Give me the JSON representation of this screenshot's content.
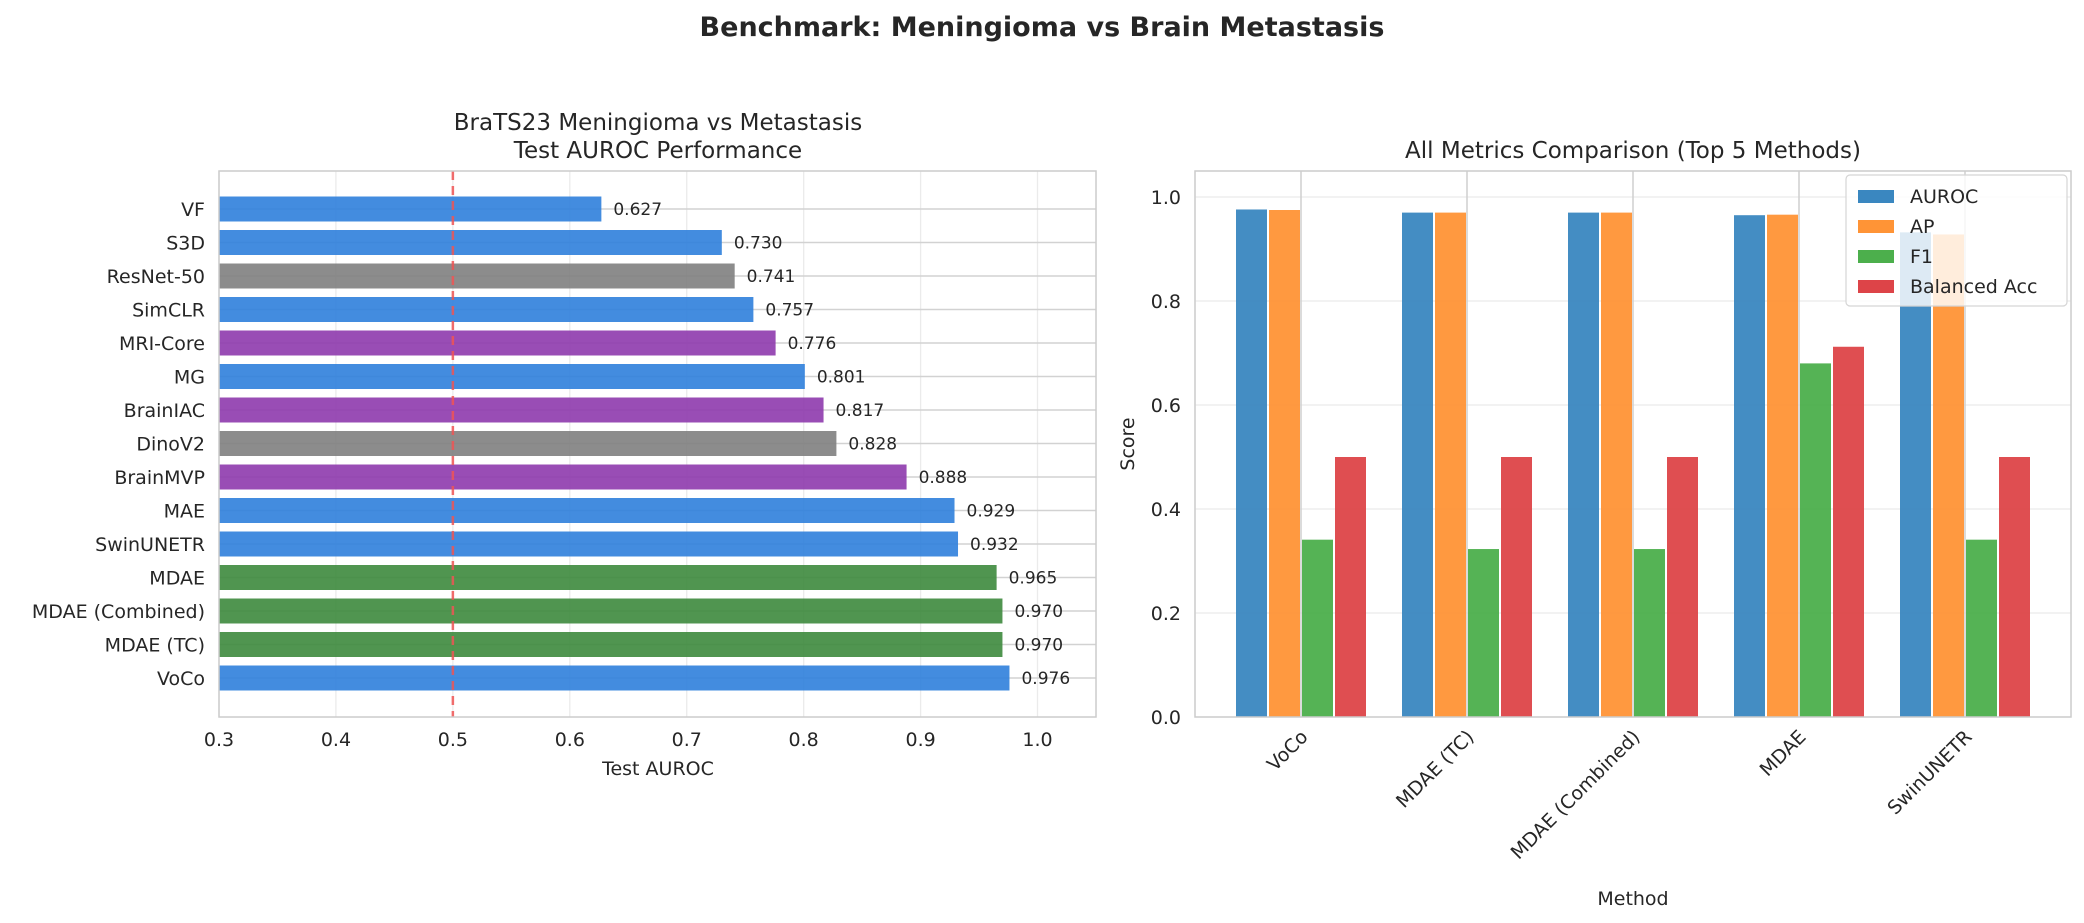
{
  "suptitle": "Benchmark: Meningioma vs Brain Metastasis",
  "chart_data": [
    {
      "type": "bar",
      "orientation": "horizontal",
      "title_line1": "BraTS23 Meningioma vs Metastasis",
      "title_line2": "Test AUROC Performance",
      "xlabel": "Test AUROC",
      "ylabel": "",
      "xlim": [
        0.3,
        1.05
      ],
      "xticks": [
        "0.3",
        "0.4",
        "0.5",
        "0.6",
        "0.7",
        "0.8",
        "0.9",
        "1.0"
      ],
      "xtick_values": [
        0.3,
        0.4,
        0.5,
        0.6,
        0.7,
        0.8,
        0.9,
        1.0
      ],
      "reference_line": 0.5,
      "reference_color": "#ee5555",
      "grid": true,
      "categories": [
        "VF",
        "S3D",
        "ResNet-50",
        "SimCLR",
        "MRI-Core",
        "MG",
        "BrainIAC",
        "DinoV2",
        "BrainMVP",
        "MAE",
        "SwinUNETR",
        "MDAE",
        "MDAE (Combined)",
        "MDAE (TC)",
        "VoCo"
      ],
      "values": [
        0.627,
        0.73,
        0.741,
        0.757,
        0.776,
        0.801,
        0.817,
        0.828,
        0.888,
        0.929,
        0.932,
        0.965,
        0.97,
        0.97,
        0.976
      ],
      "value_labels": [
        "0.627",
        "0.730",
        "0.741",
        "0.757",
        "0.776",
        "0.801",
        "0.817",
        "0.828",
        "0.888",
        "0.929",
        "0.932",
        "0.965",
        "0.970",
        "0.970",
        "0.976"
      ],
      "colors": [
        "#2f80dc",
        "#2f80dc",
        "#808080",
        "#2f80dc",
        "#8e3aad",
        "#2f80dc",
        "#8e3aad",
        "#808080",
        "#8e3aad",
        "#2f80dc",
        "#2f80dc",
        "#3d8a3d",
        "#3d8a3d",
        "#3d8a3d",
        "#2f80dc"
      ]
    },
    {
      "type": "bar",
      "title": "All Metrics Comparison (Top 5 Methods)",
      "xlabel": "Method",
      "ylabel": "Score",
      "ylim": [
        0.0,
        1.05
      ],
      "yticks": [
        "0.0",
        "0.2",
        "0.4",
        "0.6",
        "0.8",
        "1.0"
      ],
      "ytick_values": [
        0.0,
        0.2,
        0.4,
        0.6,
        0.8,
        1.0
      ],
      "grid": true,
      "legend_position": "top-right",
      "categories": [
        "VoCo",
        "MDAE (TC)",
        "MDAE (Combined)",
        "MDAE",
        "SwinUNETR"
      ],
      "series": [
        {
          "name": "AUROC",
          "color": "#3a87c0",
          "values": [
            0.976,
            0.97,
            0.97,
            0.965,
            0.932
          ]
        },
        {
          "name": "AP",
          "color": "#ff9436",
          "values": [
            0.975,
            0.97,
            0.97,
            0.966,
            0.928
          ]
        },
        {
          "name": "F1",
          "color": "#4caf4c",
          "values": [
            0.341,
            0.323,
            0.323,
            0.68,
            0.341
          ]
        },
        {
          "name": "Balanced Acc",
          "color": "#dd4448",
          "values": [
            0.5,
            0.5,
            0.5,
            0.712,
            0.5
          ]
        }
      ]
    }
  ]
}
